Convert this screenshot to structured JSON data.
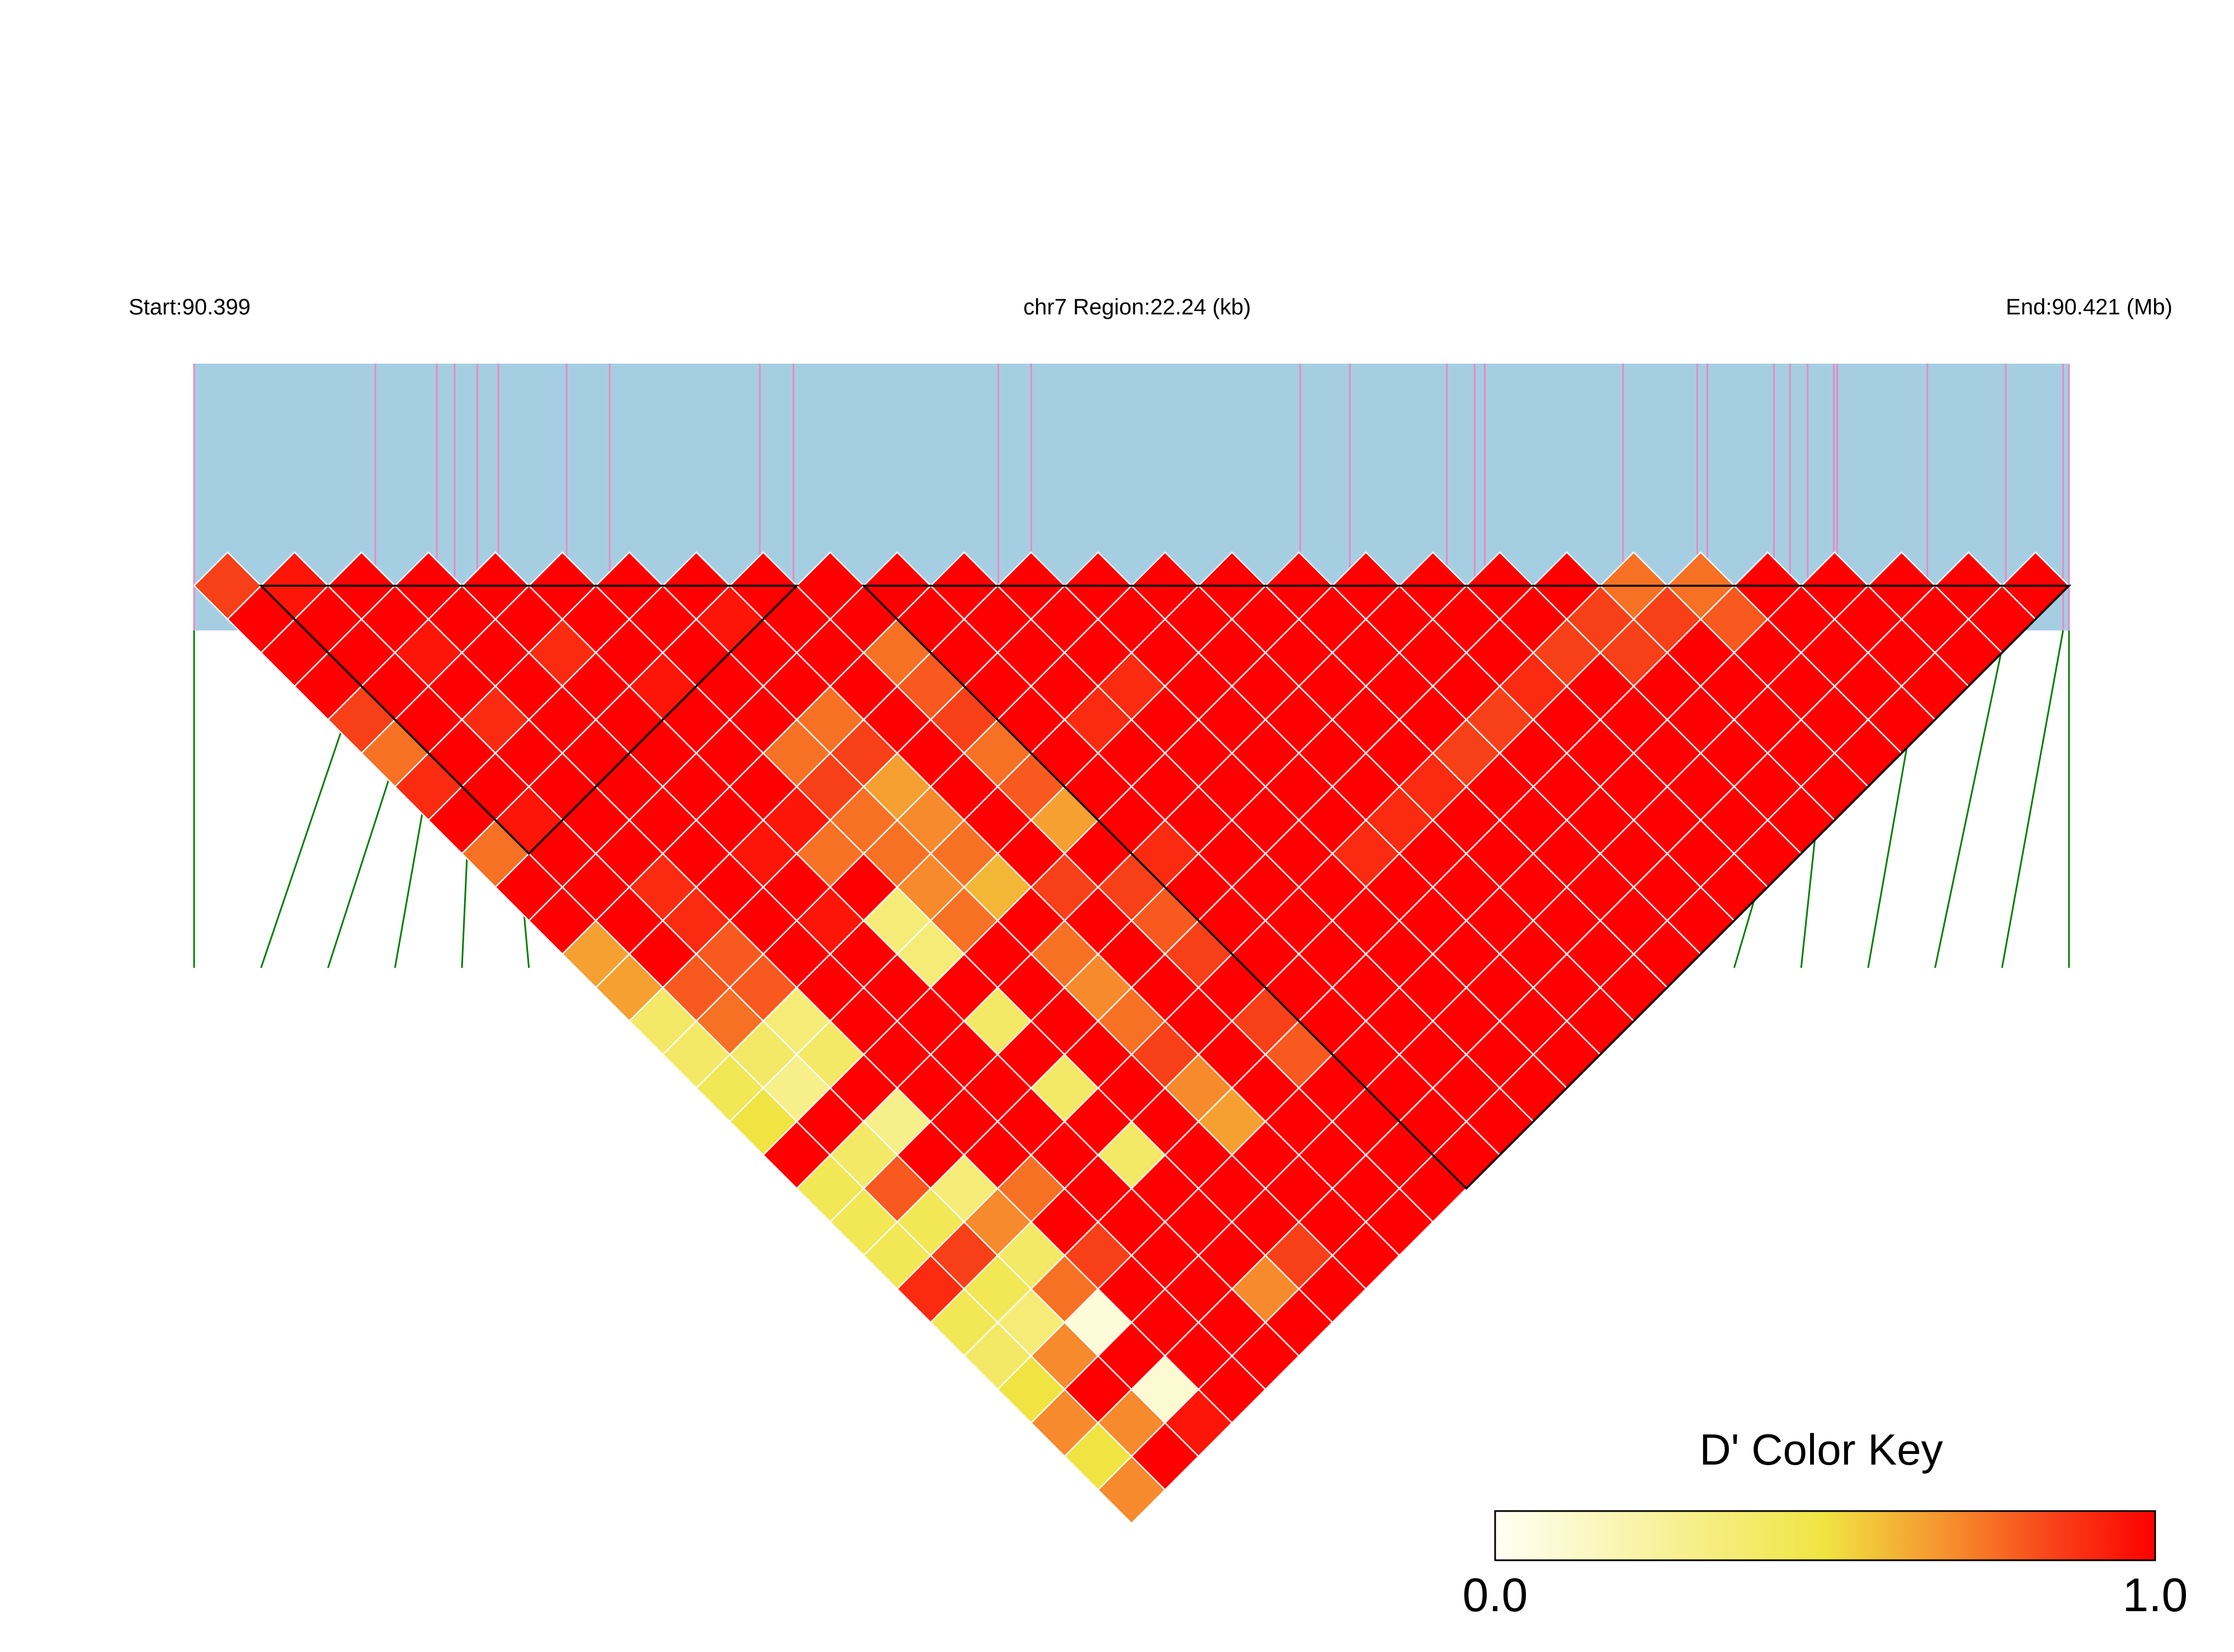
{
  "chart_data": {
    "type": "heatmap",
    "measure": "D'",
    "header": {
      "start_label": "Start:90.399",
      "region_label": "chr7 Region:22.24 (kb)",
      "end_label": "End:90.421 (Mb)"
    },
    "chromosome": "chr7",
    "snp_positions_mb": [
      90.399,
      90.40115,
      90.40188,
      90.40209,
      90.40236,
      90.40261,
      90.40342,
      90.40393,
      90.40571,
      90.40611,
      90.40854,
      90.40893,
      90.41212,
      90.41271,
      90.41386,
      90.41419,
      90.41431,
      90.41595,
      90.41683,
      90.41695,
      90.41774,
      90.41793,
      90.41814,
      90.41845,
      90.41849,
      90.41956,
      90.42049,
      90.42117,
      90.42124
    ],
    "ld_upper_triangle_rows": [
      [
        0.85,
        1,
        1,
        1,
        0.85,
        0.75,
        0.9,
        1,
        0.75,
        1,
        1,
        0.65,
        0.65,
        0.4,
        0.4,
        0.45,
        0.5,
        1,
        0.45,
        0.45,
        0.45,
        0.9,
        0.45,
        0.4,
        0.5,
        0.7,
        0.5,
        0.7
      ],
      [
        0.95,
        1,
        1,
        1,
        1,
        1,
        1,
        0.95,
        1,
        1,
        1,
        1,
        0.8,
        0.75,
        0.4,
        0.3,
        1,
        0.4,
        0.8,
        0.45,
        0.85,
        0.45,
        0.35,
        0.7,
        1,
        0.7,
        1
      ],
      [
        1,
        1,
        0.95,
        1,
        0.9,
        1,
        1,
        1,
        1,
        0.9,
        0.9,
        0.8,
        0.8,
        0.35,
        0.4,
        1,
        0.3,
        1,
        0.35,
        0.7,
        0.4,
        0.75,
        0.08,
        1,
        0.1,
        0.95
      ],
      [
        1,
        1,
        1,
        1,
        1,
        1,
        1,
        1,
        1,
        1,
        1,
        1,
        1,
        1,
        1,
        1,
        1,
        1,
        0.75,
        1,
        0.85,
        1,
        1,
        1,
        1
      ],
      [
        1,
        1,
        0.9,
        1,
        1,
        1,
        1,
        1,
        0.95,
        1,
        0.95,
        1,
        1,
        1,
        1,
        1,
        1,
        1,
        1,
        1,
        1,
        1,
        1,
        1
      ],
      [
        1,
        1,
        1,
        0.95,
        1,
        1,
        1,
        0.95,
        0.75,
        1,
        0.35,
        0.35,
        1,
        0.4,
        1,
        0.4,
        1,
        0.4,
        1,
        1,
        1,
        0.7,
        1
      ],
      [
        1,
        1,
        1,
        1,
        1,
        0.75,
        0.85,
        0.75,
        0.75,
        0.7,
        0.75,
        1,
        1,
        1,
        1,
        1,
        1,
        1,
        1,
        1,
        0.85,
        1
      ],
      [
        1,
        0.95,
        1,
        1,
        0.75,
        0.85,
        0.65,
        0.7,
        0.75,
        0.6,
        1,
        0.75,
        0.7,
        0.75,
        0.85,
        0.7,
        0.65,
        1,
        1,
        1,
        1
      ],
      [
        1,
        1,
        1,
        1,
        1,
        1,
        1,
        1,
        1,
        0.85,
        1,
        1,
        1,
        1,
        1,
        1,
        1,
        1,
        1,
        1
      ],
      [
        1,
        1,
        0.75,
        0.8,
        0.85,
        0.75,
        0.8,
        0.65,
        1,
        0.85,
        0.8,
        0.85,
        1,
        0.85,
        0.8,
        1,
        1,
        1,
        1
      ],
      [
        1,
        1,
        1,
        1,
        1,
        1,
        1,
        1,
        0.9,
        1,
        1,
        1,
        1,
        1,
        1,
        1,
        1,
        1
      ],
      [
        1,
        1,
        1,
        1,
        0.9,
        1,
        1,
        1,
        1,
        1,
        1,
        1,
        1,
        1,
        1,
        1,
        1
      ],
      [
        1,
        1,
        1,
        0.9,
        1,
        1,
        1,
        1,
        1,
        1,
        1,
        1,
        1,
        1,
        1,
        1
      ],
      [
        1,
        1,
        1,
        1,
        1,
        1,
        1,
        1,
        0.9,
        1,
        1,
        1,
        1,
        1,
        1
      ],
      [
        1,
        1,
        1,
        1,
        1,
        1,
        1,
        0.9,
        1,
        1,
        1,
        1,
        1,
        1
      ],
      [
        1,
        1,
        1,
        1,
        1,
        1,
        0.9,
        1,
        1,
        1,
        1,
        1,
        1
      ],
      [
        1,
        1,
        1,
        1,
        1,
        0.85,
        1,
        1,
        1,
        1,
        1,
        1
      ],
      [
        1,
        1,
        1,
        1,
        0.85,
        1,
        1,
        1,
        1,
        1,
        1
      ],
      [
        1,
        1,
        1,
        0.9,
        1,
        1,
        1,
        1,
        1,
        1
      ],
      [
        1,
        1,
        0.85,
        1,
        1,
        1,
        1,
        1,
        1
      ],
      [
        1,
        0.85,
        0.85,
        1,
        1,
        1,
        1,
        1
      ],
      [
        0.75,
        0.85,
        1,
        1,
        1,
        1,
        1
      ],
      [
        0.75,
        0.8,
        1,
        1,
        1,
        1
      ],
      [
        1,
        1,
        1,
        1,
        1
      ],
      [
        1,
        1,
        1,
        1
      ],
      [
        1,
        1,
        1
      ],
      [
        1,
        1
      ],
      [
        1
      ]
    ],
    "haplotype_blocks_snp_index": [
      [
        2,
        10
      ],
      [
        11,
        29
      ]
    ],
    "color_key": {
      "title": "D' Color Key",
      "min_label": "0.0",
      "max_label": "1.0",
      "range": [
        0,
        1
      ],
      "stops": [
        {
          "value": 0.0,
          "color": "#FFFFF5"
        },
        {
          "value": 0.5,
          "color": "#F0E442"
        },
        {
          "value": 0.7,
          "color": "#F68A2C"
        },
        {
          "value": 0.85,
          "color": "#F84018"
        },
        {
          "value": 1.0,
          "color": "#FF0000"
        }
      ]
    },
    "colors": {
      "gene_bar": "#A6CEE3",
      "snp_tick": "#E78AC3",
      "connector": "#008000",
      "block_outline": "#000000",
      "cell_border": "#FFFFFF"
    }
  }
}
